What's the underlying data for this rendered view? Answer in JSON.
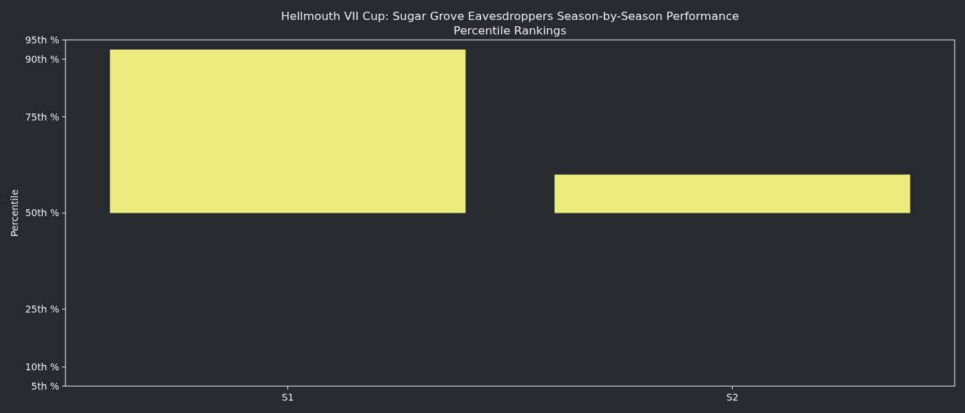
{
  "chart_data": {
    "type": "bar",
    "title": "Hellmouth VII Cup: Sugar Grove Eavesdroppers Season-by-Season Performance",
    "subtitle": "Percentile Rankings",
    "ylabel": "Percentile",
    "categories": [
      "S1",
      "S2"
    ],
    "values": [
      42.5,
      10
    ],
    "base": [
      50,
      50
    ],
    "color": "#ebeb7b",
    "ylim": [
      5,
      95
    ],
    "yticks": [
      {
        "value": 5,
        "label": "5th %"
      },
      {
        "value": 10,
        "label": "10th %"
      },
      {
        "value": 25,
        "label": "25th %"
      },
      {
        "value": 50,
        "label": "50th %"
      },
      {
        "value": 75,
        "label": "75th %"
      },
      {
        "value": 90,
        "label": "90th %"
      },
      {
        "value": 95,
        "label": "95th %"
      }
    ]
  }
}
